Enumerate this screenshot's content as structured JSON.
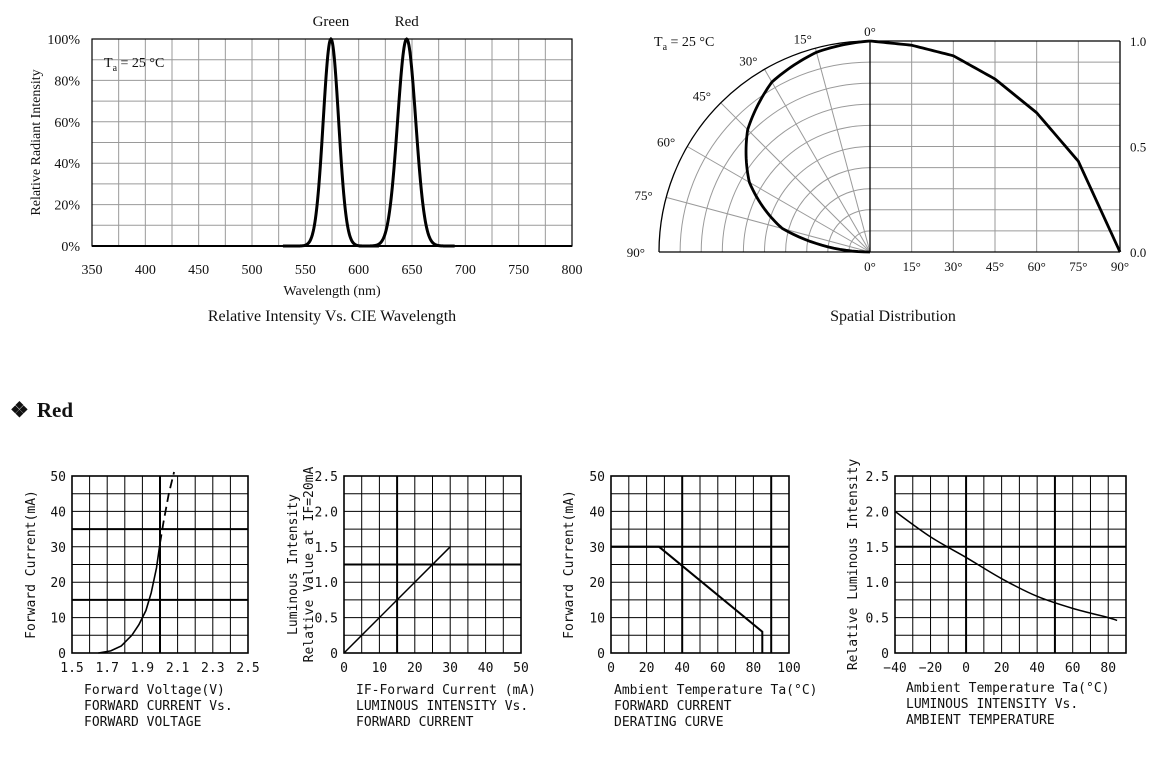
{
  "section": {
    "bullet": "❖",
    "title": "Red"
  },
  "charts": {
    "spectrum": {
      "type": "line",
      "caption": "Relative Intensity Vs. CIE Wavelength",
      "xlabel": "Wavelength (nm)",
      "ylabel": "Relative Radiant Intensity",
      "condition": {
        "main": "T",
        "sub": "a",
        "rest": " = 25 °C"
      },
      "xlim": [
        350,
        800
      ],
      "ylim": [
        0,
        100
      ],
      "xticks": [
        "350",
        "400",
        "450",
        "500",
        "550",
        "600",
        "650",
        "700",
        "750",
        "800"
      ],
      "yticks": [
        "0%",
        "20%",
        "40%",
        "60%",
        "80%",
        "100%"
      ],
      "peaks": [
        {
          "name": "Green",
          "x": 574
        },
        {
          "name": "Red",
          "x": 645
        }
      ],
      "series": [
        {
          "name": "Green",
          "center": 574,
          "fwhm": 17
        },
        {
          "name": "Red",
          "center": 645,
          "fwhm": 20
        }
      ]
    },
    "spatial": {
      "type": "line",
      "caption": "Spatial Distribution",
      "condition": {
        "main": "T",
        "sub": "a",
        "rest": " = 25 °C"
      },
      "angle_labels": [
        "0°",
        "15°",
        "30°",
        "45°",
        "60°",
        "75°",
        "90°"
      ],
      "xticks": [
        "0°",
        "15°",
        "30°",
        "45°",
        "60°",
        "75°",
        "90°"
      ],
      "yticks": [
        "0.0",
        "0.5",
        "1.0"
      ],
      "ylim": [
        0,
        1
      ],
      "half_angle_deg": 90,
      "points": [
        [
          0,
          1.0
        ],
        [
          15,
          0.98
        ],
        [
          30,
          0.93
        ],
        [
          45,
          0.82
        ],
        [
          60,
          0.66
        ],
        [
          75,
          0.43
        ],
        [
          90,
          0.0
        ]
      ]
    },
    "iv": {
      "type": "line",
      "ylabel": "Forward Current(mA)",
      "caption_lines": [
        "Forward Voltage(V)",
        "FORWARD CURRENT Vs.",
        "FORWARD VOLTAGE"
      ],
      "xlim": [
        1.5,
        2.5
      ],
      "ylim": [
        0,
        50
      ],
      "xticks": [
        "1.5",
        "1.7",
        "1.9",
        "2.1",
        "2.3",
        "2.5"
      ],
      "yticks": [
        "0",
        "10",
        "20",
        "30",
        "40",
        "50"
      ],
      "points": [
        [
          1.65,
          0
        ],
        [
          1.72,
          0.6
        ],
        [
          1.78,
          2
        ],
        [
          1.84,
          5
        ],
        [
          1.88,
          8
        ],
        [
          1.92,
          12
        ],
        [
          1.95,
          17
        ],
        [
          1.98,
          24
        ],
        [
          2.0,
          31
        ],
        [
          2.02,
          37
        ],
        [
          2.05,
          45
        ],
        [
          2.08,
          52
        ]
      ],
      "solid_until": 2.0
    },
    "lum_current": {
      "type": "line",
      "ylabel_lines": [
        "Luminous Intensity",
        "Relative Value at IF=20mA"
      ],
      "caption_lines": [
        "IF-Forward Current (mA)",
        "LUMINOUS INTENSITY Vs.",
        "FORWARD CURRENT"
      ],
      "xlim": [
        0,
        50
      ],
      "ylim": [
        0,
        2.5
      ],
      "xticks": [
        "0",
        "10",
        "20",
        "30",
        "40",
        "50"
      ],
      "yticks": [
        "0",
        "0.5",
        "1.0",
        "1.5",
        "2.0",
        "2.5"
      ],
      "points": [
        [
          0,
          0
        ],
        [
          30,
          1.5
        ]
      ]
    },
    "derating": {
      "type": "line",
      "ylabel": "Forward Current(mA)",
      "caption_lines": [
        "Ambient Temperature Ta(°C)",
        "FORWARD CURRENT",
        "DERATING CURVE"
      ],
      "xlim": [
        0,
        100
      ],
      "ylim": [
        0,
        50
      ],
      "xticks": [
        "0",
        "20",
        "40",
        "60",
        "80",
        "100"
      ],
      "yticks": [
        "0",
        "10",
        "20",
        "30",
        "40",
        "50"
      ],
      "points": [
        [
          0,
          30
        ],
        [
          27,
          30
        ],
        [
          85,
          6
        ],
        [
          85,
          0
        ]
      ]
    },
    "lum_temp": {
      "type": "line",
      "ylabel": "Relative Luminous Intensity",
      "caption_lines": [
        "Ambient Temperature Ta(°C)",
        "LUMINOUS INTENSITY Vs.",
        "AMBIENT TEMPERATURE"
      ],
      "xlim": [
        -40,
        90
      ],
      "ylim": [
        0,
        2.5
      ],
      "xticks": [
        "−40",
        "−20",
        "0",
        "20",
        "40",
        "60",
        "80"
      ],
      "yticks": [
        "0",
        "0.5",
        "1.0",
        "1.5",
        "2.0",
        "2.5"
      ],
      "points": [
        [
          -40,
          2.0
        ],
        [
          -20,
          1.64
        ],
        [
          0,
          1.35
        ],
        [
          20,
          1.05
        ],
        [
          40,
          0.8
        ],
        [
          60,
          0.63
        ],
        [
          80,
          0.5
        ],
        [
          85,
          0.46
        ]
      ]
    }
  }
}
